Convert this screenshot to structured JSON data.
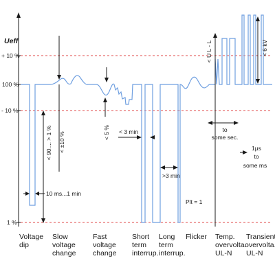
{
  "y_axis": {
    "title": "Ueff",
    "ticks": [
      "+ 10 %",
      "100 %",
      "- 10 %",
      "1 %"
    ]
  },
  "annotations": {
    "range_90_1": "< 90.... > 1 %",
    "duration_10ms_1min": "10 ms...1 min",
    "slow_10": "< ±10 %",
    "fast_5": "< 5 %",
    "short_3min": "< 3 min",
    "long_3min": ">3 min",
    "plt": "Plt = 1",
    "ul_l": "< U L - L",
    "kv6": "< 6 kV",
    "to_some_sec": [
      "to",
      "some sec."
    ],
    "us_to_ms": [
      "1μs",
      "to",
      "some ms"
    ]
  },
  "categories": [
    [
      "Voltage",
      "dip"
    ],
    [
      "Slow",
      "voltage",
      "change"
    ],
    [
      "Fast",
      "voltage",
      "change"
    ],
    [
      "Short",
      "term",
      "interrup."
    ],
    [
      "Long",
      "term",
      "interrup."
    ],
    [
      "Flicker"
    ],
    [
      "Temp.",
      "overvolta.",
      "UL-N"
    ],
    [
      "Transient",
      "overvolta.",
      "UL-N"
    ]
  ],
  "colors": {
    "trace": "#6f9fe0",
    "limit_line": "#e04848",
    "axis": "#1a1a1a"
  }
}
